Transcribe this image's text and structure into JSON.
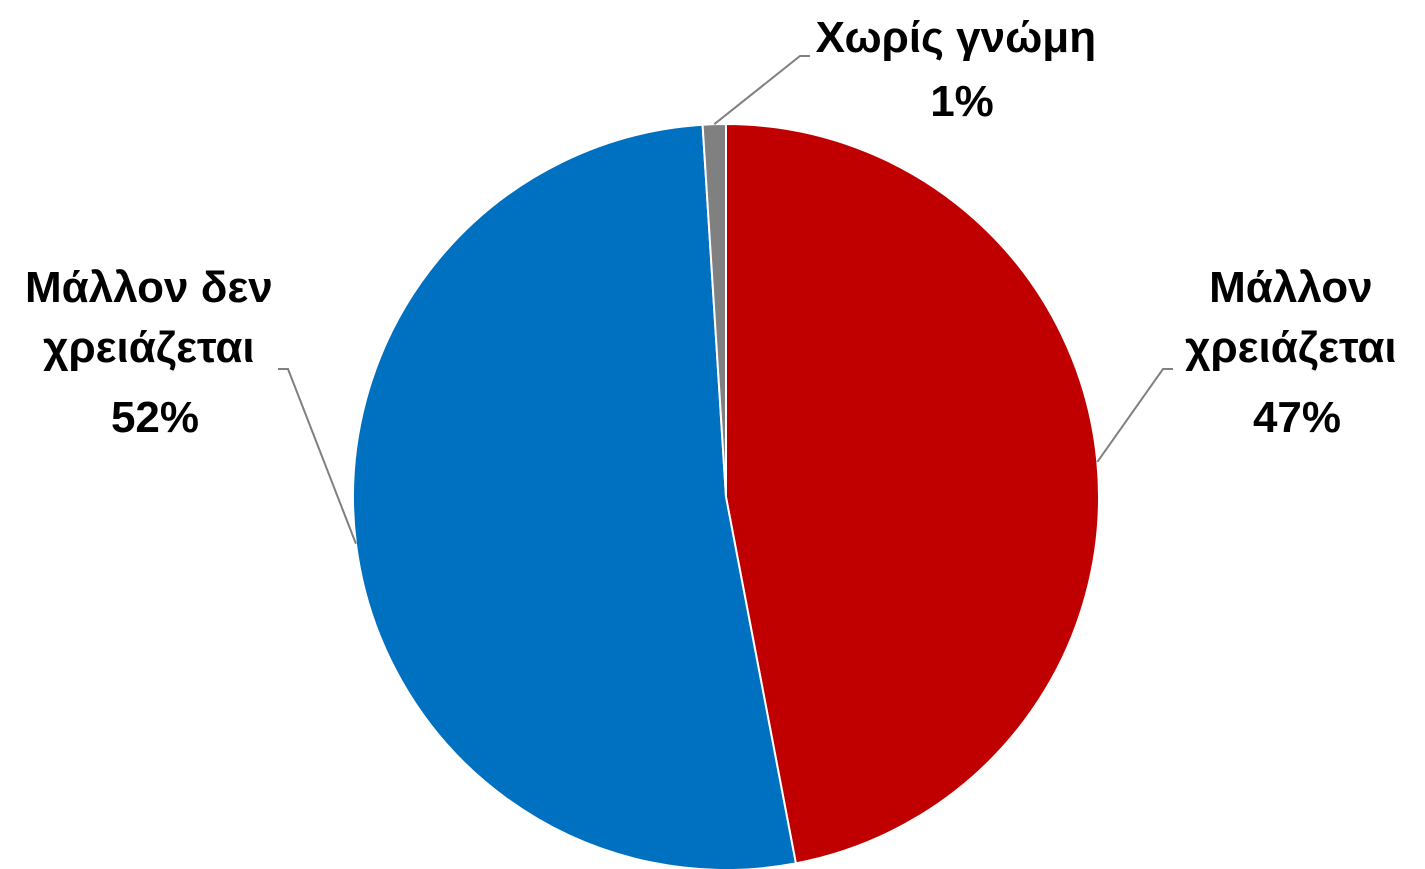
{
  "chart_data": {
    "type": "pie",
    "start_angle_deg": 0,
    "direction": "clockwise",
    "slices": [
      {
        "name_lines": [
          "Μάλλον",
          "χρειάζεται"
        ],
        "value": 47,
        "value_label": "47%",
        "color": "#c00000"
      },
      {
        "name_lines": [
          "Μάλλον δεν",
          "χρειάζεται"
        ],
        "value": 52,
        "value_label": "52%",
        "color": "#0070c0"
      },
      {
        "name_lines": [
          "Χωρίς γνώμη"
        ],
        "value": 1,
        "value_label": "1%",
        "color": "#808080"
      }
    ],
    "leader_line_color": "#808080",
    "legend": "none"
  }
}
